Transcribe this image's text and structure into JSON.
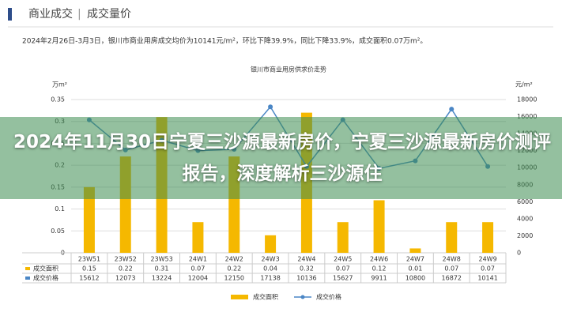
{
  "header": {
    "title": "商业成交",
    "section": "成交量价",
    "subtitle": "2024年2月26日-3月3日，银川市商业用房成交均价为10141元/m²，环比下降39.9%，同比下降33.9%，成交面积0.07万m²。"
  },
  "overlay_title": "2024年11月30日宁夏三沙源最新房价，宁夏三沙源最新房价测评报告，深度解析三沙源住",
  "chart_data": {
    "type": "bar-line",
    "title": "银川市商业用房供求价走势",
    "ylabel": "万m²",
    "y2label": "元/m²",
    "categories": [
      "23W51",
      "23W52",
      "23W53",
      "24W1",
      "24W2",
      "24W3",
      "24W4",
      "24W5",
      "24W6",
      "24W7",
      "24W8",
      "24W9"
    ],
    "series": [
      {
        "name": "成交面积",
        "kind": "bar",
        "color": "#f5b800",
        "values": [
          0.15,
          0.22,
          0.31,
          0.07,
          0.22,
          0.04,
          0.32,
          0.07,
          0.12,
          0.01,
          0.07,
          0.07
        ]
      },
      {
        "name": "成交价格",
        "kind": "line",
        "axis": "y2",
        "color": "#4a86c5",
        "values": [
          15612,
          12073,
          13224,
          12004,
          12150,
          17138,
          10136,
          15627,
          9911,
          10800,
          16872,
          10141
        ]
      }
    ],
    "ylim": [
      0,
      0.35
    ],
    "yticks": [
      0,
      0.05,
      0.1,
      0.15,
      0.2,
      0.25,
      0.3,
      0.35
    ],
    "y2lim": [
      0,
      18000
    ],
    "y2ticks": [
      0,
      2000,
      4000,
      6000,
      8000,
      10000,
      12000,
      14000,
      16000,
      18000
    ],
    "grid": true,
    "legend": "bottom"
  }
}
